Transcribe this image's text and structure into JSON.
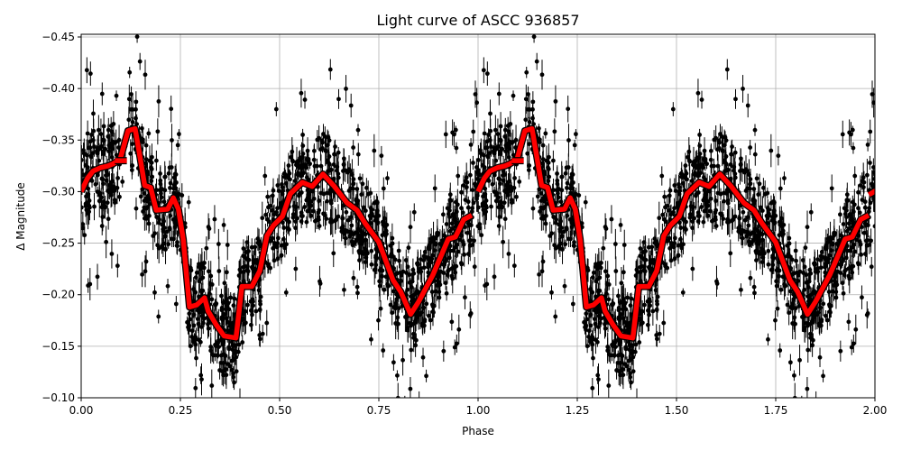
{
  "chart_data": {
    "type": "scatter",
    "title": "Light curve of ASCC 936857",
    "xlabel": "Phase",
    "ylabel": "Δ Magnitude",
    "xlim": [
      0.0,
      2.0
    ],
    "ylim": [
      -0.1,
      -0.45
    ],
    "y_inverted": true,
    "grid": true,
    "legend": null,
    "xticks": [
      "0.00",
      "0.25",
      "0.50",
      "0.75",
      "1.00",
      "1.25",
      "1.50",
      "1.75",
      "2.00"
    ],
    "yticks": [
      "-0.45",
      "-0.40",
      "-0.35",
      "-0.30",
      "-0.25",
      "-0.20",
      "-0.15",
      "-0.10"
    ],
    "series": [
      {
        "name": "observations",
        "style": "black points with vertical error bars",
        "color": "#000000",
        "note": "dense phase-folded photometry, repeated for phase 1-2; values scatter roughly -0.10 to -0.45"
      },
      {
        "name": "binned model",
        "style": "thick red line with black edge",
        "color": "#ff0000",
        "period_repeat": true,
        "x": [
          0.0,
          0.016,
          0.03,
          0.048,
          0.068,
          0.08,
          0.098,
          0.118,
          0.136,
          0.145,
          0.16,
          0.175,
          0.189,
          0.218,
          0.232,
          0.245,
          0.257,
          0.273,
          0.291,
          0.311,
          0.32,
          0.34,
          0.36,
          0.39,
          0.405,
          0.43,
          0.45,
          0.468,
          0.484,
          0.507,
          0.527,
          0.557,
          0.582,
          0.609,
          0.636,
          0.67,
          0.695,
          0.716,
          0.75,
          0.786,
          0.805,
          0.83,
          0.85,
          0.886,
          0.925,
          0.943,
          0.964,
          0.984
        ],
        "y": [
          -0.3,
          -0.313,
          -0.32,
          -0.323,
          -0.325,
          -0.327,
          -0.331,
          -0.359,
          -0.361,
          -0.341,
          -0.306,
          -0.304,
          -0.282,
          -0.283,
          -0.294,
          -0.283,
          -0.254,
          -0.188,
          -0.19,
          -0.197,
          -0.184,
          -0.171,
          -0.16,
          -0.158,
          -0.208,
          -0.208,
          -0.223,
          -0.257,
          -0.267,
          -0.276,
          -0.298,
          -0.309,
          -0.305,
          -0.317,
          -0.306,
          -0.289,
          -0.282,
          -0.269,
          -0.251,
          -0.214,
          -0.203,
          -0.181,
          -0.193,
          -0.219,
          -0.254,
          -0.256,
          -0.273,
          -0.277
        ],
        "isolated_segment": {
          "x": [
            0.085,
            0.115
          ],
          "y": [
            -0.33,
            -0.33
          ]
        }
      }
    ]
  }
}
